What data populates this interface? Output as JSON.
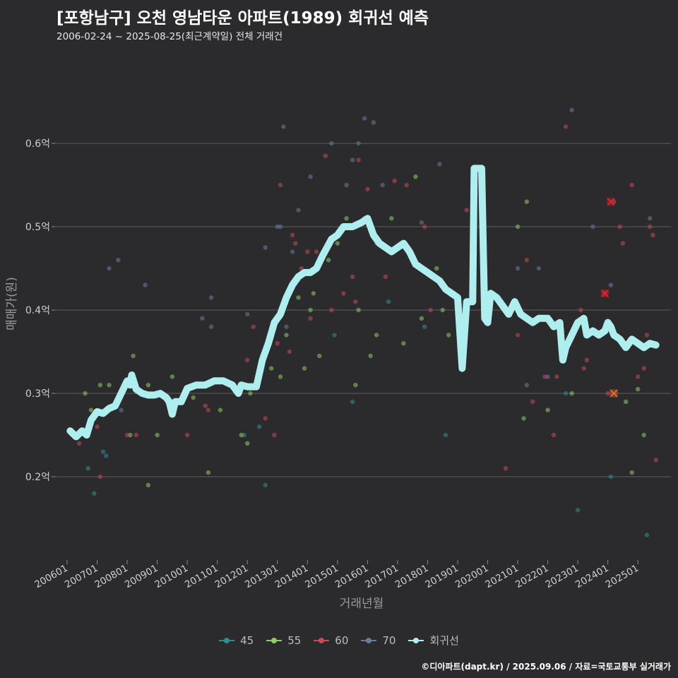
{
  "title": "[포항남구] 오천 영남타운 아파트(1989) 회귀선 예측",
  "subtitle": "2006-02-24 ~ 2025-08-25(최근계약일) 전체 거래건",
  "footer": "©디아파트(dapt.kr) / 2025.09.06 / 자료=국토교통부 실거래가",
  "chart_data": {
    "type": "scatter",
    "xlabel": "거래년월",
    "ylabel": "매매가(원)",
    "xlim": [
      2005.6,
      2026.1
    ],
    "ylim": [
      0.1,
      0.7
    ],
    "x_ticks": [
      {
        "value": 2006,
        "label": "200601"
      },
      {
        "value": 2007,
        "label": "200701"
      },
      {
        "value": 2008,
        "label": "200801"
      },
      {
        "value": 2009,
        "label": "200901"
      },
      {
        "value": 2010,
        "label": "201001"
      },
      {
        "value": 2011,
        "label": "201101"
      },
      {
        "value": 2012,
        "label": "201201"
      },
      {
        "value": 2013,
        "label": "201301"
      },
      {
        "value": 2014,
        "label": "201401"
      },
      {
        "value": 2015,
        "label": "201501"
      },
      {
        "value": 2016,
        "label": "201601"
      },
      {
        "value": 2017,
        "label": "201701"
      },
      {
        "value": 2018,
        "label": "201801"
      },
      {
        "value": 2019,
        "label": "201901"
      },
      {
        "value": 2020,
        "label": "202001"
      },
      {
        "value": 2021,
        "label": "202101"
      },
      {
        "value": 2022,
        "label": "202201"
      },
      {
        "value": 2023,
        "label": "202301"
      },
      {
        "value": 2024,
        "label": "202401"
      },
      {
        "value": 2025,
        "label": "202501"
      }
    ],
    "y_ticks": [
      {
        "value": 0.2,
        "label": "0.2억"
      },
      {
        "value": 0.3,
        "label": "0.3억"
      },
      {
        "value": 0.4,
        "label": "0.4억"
      },
      {
        "value": 0.5,
        "label": "0.5억"
      },
      {
        "value": 0.6,
        "label": "0.6억"
      }
    ],
    "series": [
      {
        "name": "45",
        "color": "#2a8f93",
        "points": [
          [
            2006.7,
            0.21
          ],
          [
            2006.9,
            0.18
          ],
          [
            2007.2,
            0.23
          ],
          [
            2007.3,
            0.225
          ],
          [
            2011.4,
            0.31
          ],
          [
            2011.9,
            0.25
          ],
          [
            2012.0,
            0.31
          ],
          [
            2012.4,
            0.26
          ],
          [
            2012.6,
            0.19
          ],
          [
            2014.9,
            0.37
          ],
          [
            2015.5,
            0.29
          ],
          [
            2016.7,
            0.41
          ],
          [
            2017.9,
            0.38
          ],
          [
            2018.6,
            0.25
          ],
          [
            2022.6,
            0.3
          ],
          [
            2023.0,
            0.16
          ],
          [
            2024.1,
            0.2
          ],
          [
            2025.3,
            0.13
          ]
        ]
      },
      {
        "name": "55",
        "color": "#8ccf62",
        "points": [
          [
            2006.6,
            0.3
          ],
          [
            2006.8,
            0.28
          ],
          [
            2007.1,
            0.31
          ],
          [
            2007.2,
            0.275
          ],
          [
            2007.4,
            0.31
          ],
          [
            2008.1,
            0.25
          ],
          [
            2008.2,
            0.345
          ],
          [
            2008.7,
            0.31
          ],
          [
            2008.7,
            0.19
          ],
          [
            2009.0,
            0.25
          ],
          [
            2009.5,
            0.32
          ],
          [
            2010.2,
            0.295
          ],
          [
            2010.7,
            0.205
          ],
          [
            2011.1,
            0.28
          ],
          [
            2011.8,
            0.25
          ],
          [
            2012.0,
            0.24
          ],
          [
            2012.1,
            0.3
          ],
          [
            2012.4,
            0.32
          ],
          [
            2012.8,
            0.33
          ],
          [
            2013.1,
            0.32
          ],
          [
            2013.3,
            0.37
          ],
          [
            2013.7,
            0.415
          ],
          [
            2013.9,
            0.33
          ],
          [
            2014.1,
            0.4
          ],
          [
            2014.2,
            0.42
          ],
          [
            2014.4,
            0.345
          ],
          [
            2014.7,
            0.46
          ],
          [
            2015.0,
            0.48
          ],
          [
            2015.3,
            0.51
          ],
          [
            2015.6,
            0.31
          ],
          [
            2015.7,
            0.4
          ],
          [
            2016.1,
            0.345
          ],
          [
            2016.3,
            0.37
          ],
          [
            2016.8,
            0.51
          ],
          [
            2017.2,
            0.36
          ],
          [
            2017.6,
            0.56
          ],
          [
            2017.8,
            0.39
          ],
          [
            2018.3,
            0.45
          ],
          [
            2018.5,
            0.4
          ],
          [
            2018.7,
            0.37
          ],
          [
            2021.0,
            0.5
          ],
          [
            2021.2,
            0.27
          ],
          [
            2021.3,
            0.53
          ],
          [
            2022.0,
            0.28
          ],
          [
            2022.8,
            0.3
          ],
          [
            2024.6,
            0.29
          ],
          [
            2024.8,
            0.205
          ],
          [
            2025.0,
            0.305
          ],
          [
            2025.2,
            0.25
          ]
        ]
      },
      {
        "name": "60",
        "color": "#c94b55",
        "points": [
          [
            2006.4,
            0.24
          ],
          [
            2007.0,
            0.26
          ],
          [
            2007.1,
            0.2
          ],
          [
            2008.0,
            0.25
          ],
          [
            2008.3,
            0.25
          ],
          [
            2010.0,
            0.25
          ],
          [
            2010.6,
            0.285
          ],
          [
            2010.7,
            0.28
          ],
          [
            2012.0,
            0.34
          ],
          [
            2012.2,
            0.38
          ],
          [
            2012.6,
            0.27
          ],
          [
            2012.9,
            0.25
          ],
          [
            2013.0,
            0.36
          ],
          [
            2013.1,
            0.55
          ],
          [
            2013.4,
            0.35
          ],
          [
            2013.5,
            0.49
          ],
          [
            2013.6,
            0.48
          ],
          [
            2013.8,
            0.45
          ],
          [
            2014.0,
            0.47
          ],
          [
            2014.1,
            0.39
          ],
          [
            2014.3,
            0.47
          ],
          [
            2014.6,
            0.585
          ],
          [
            2014.8,
            0.4
          ],
          [
            2015.2,
            0.42
          ],
          [
            2015.5,
            0.44
          ],
          [
            2015.6,
            0.41
          ],
          [
            2015.7,
            0.58
          ],
          [
            2015.9,
            0.51
          ],
          [
            2016.0,
            0.545
          ],
          [
            2016.3,
            0.48
          ],
          [
            2016.6,
            0.44
          ],
          [
            2016.9,
            0.555
          ],
          [
            2017.3,
            0.55
          ],
          [
            2017.9,
            0.5
          ],
          [
            2018.1,
            0.4
          ],
          [
            2019.3,
            0.52
          ],
          [
            2020.6,
            0.21
          ],
          [
            2021.0,
            0.37
          ],
          [
            2021.3,
            0.46
          ],
          [
            2021.5,
            0.29
          ],
          [
            2021.9,
            0.32
          ],
          [
            2022.2,
            0.25
          ],
          [
            2022.3,
            0.32
          ],
          [
            2022.6,
            0.62
          ],
          [
            2023.1,
            0.4
          ],
          [
            2023.2,
            0.33
          ],
          [
            2023.3,
            0.34
          ],
          [
            2023.9,
            0.42
          ],
          [
            2024.0,
            0.3
          ],
          [
            2024.2,
            0.53
          ],
          [
            2024.4,
            0.5
          ],
          [
            2024.5,
            0.48
          ],
          [
            2024.8,
            0.55
          ],
          [
            2025.0,
            0.32
          ],
          [
            2025.2,
            0.33
          ],
          [
            2025.3,
            0.37
          ],
          [
            2025.4,
            0.5
          ],
          [
            2025.5,
            0.49
          ],
          [
            2025.6,
            0.22
          ]
        ]
      },
      {
        "name": "70",
        "color": "#6a7a9c",
        "points": [
          [
            2007.4,
            0.45
          ],
          [
            2007.7,
            0.46
          ],
          [
            2007.8,
            0.28
          ],
          [
            2008.6,
            0.43
          ],
          [
            2010.5,
            0.39
          ],
          [
            2010.8,
            0.415
          ],
          [
            2010.8,
            0.38
          ],
          [
            2012.0,
            0.395
          ],
          [
            2012.6,
            0.475
          ],
          [
            2013.0,
            0.5
          ],
          [
            2013.1,
            0.5
          ],
          [
            2013.2,
            0.62
          ],
          [
            2013.3,
            0.38
          ],
          [
            2013.5,
            0.47
          ],
          [
            2013.7,
            0.52
          ],
          [
            2014.1,
            0.56
          ],
          [
            2014.8,
            0.6
          ],
          [
            2015.3,
            0.55
          ],
          [
            2015.5,
            0.58
          ],
          [
            2015.7,
            0.6
          ],
          [
            2015.9,
            0.63
          ],
          [
            2016.2,
            0.625
          ],
          [
            2016.5,
            0.55
          ],
          [
            2017.8,
            0.505
          ],
          [
            2018.4,
            0.575
          ],
          [
            2021.0,
            0.45
          ],
          [
            2021.3,
            0.31
          ],
          [
            2021.7,
            0.45
          ],
          [
            2022.0,
            0.32
          ],
          [
            2022.8,
            0.64
          ],
          [
            2023.5,
            0.5
          ],
          [
            2024.1,
            0.43
          ],
          [
            2025.4,
            0.51
          ]
        ]
      }
    ],
    "highlighted_points": [
      {
        "x": 2023.9,
        "y": 0.42,
        "color": "#d9232c"
      },
      {
        "x": 2024.1,
        "y": 0.53,
        "color": "#d9232c"
      },
      {
        "x": 2024.2,
        "y": 0.3,
        "color": "#e06a2c"
      }
    ],
    "regression": {
      "name": "회귀선",
      "color": "#aeeeee",
      "points": [
        [
          2006.1,
          0.255
        ],
        [
          2006.3,
          0.248
        ],
        [
          2006.5,
          0.255
        ],
        [
          2006.65,
          0.25
        ],
        [
          2006.8,
          0.268
        ],
        [
          2007.0,
          0.278
        ],
        [
          2007.2,
          0.276
        ],
        [
          2007.4,
          0.282
        ],
        [
          2007.6,
          0.285
        ],
        [
          2007.8,
          0.3
        ],
        [
          2008.0,
          0.315
        ],
        [
          2008.1,
          0.31
        ],
        [
          2008.15,
          0.322
        ],
        [
          2008.3,
          0.305
        ],
        [
          2008.5,
          0.3
        ],
        [
          2008.7,
          0.298
        ],
        [
          2008.9,
          0.298
        ],
        [
          2009.1,
          0.3
        ],
        [
          2009.3,
          0.295
        ],
        [
          2009.4,
          0.29
        ],
        [
          2009.5,
          0.275
        ],
        [
          2009.6,
          0.29
        ],
        [
          2009.8,
          0.29
        ],
        [
          2010.0,
          0.306
        ],
        [
          2010.3,
          0.31
        ],
        [
          2010.6,
          0.31
        ],
        [
          2010.9,
          0.315
        ],
        [
          2011.2,
          0.315
        ],
        [
          2011.5,
          0.31
        ],
        [
          2011.7,
          0.3
        ],
        [
          2011.8,
          0.31
        ],
        [
          2012.0,
          0.308
        ],
        [
          2012.3,
          0.308
        ],
        [
          2012.5,
          0.34
        ],
        [
          2012.7,
          0.36
        ],
        [
          2012.9,
          0.385
        ],
        [
          2013.1,
          0.395
        ],
        [
          2013.3,
          0.415
        ],
        [
          2013.5,
          0.43
        ],
        [
          2013.7,
          0.44
        ],
        [
          2013.9,
          0.445
        ],
        [
          2014.1,
          0.445
        ],
        [
          2014.3,
          0.45
        ],
        [
          2014.5,
          0.465
        ],
        [
          2014.8,
          0.485
        ],
        [
          2015.0,
          0.49
        ],
        [
          2015.2,
          0.5
        ],
        [
          2015.5,
          0.5
        ],
        [
          2015.8,
          0.505
        ],
        [
          2016.0,
          0.51
        ],
        [
          2016.2,
          0.49
        ],
        [
          2016.4,
          0.48
        ],
        [
          2016.6,
          0.475
        ],
        [
          2016.8,
          0.47
        ],
        [
          2017.0,
          0.475
        ],
        [
          2017.2,
          0.48
        ],
        [
          2017.4,
          0.47
        ],
        [
          2017.6,
          0.455
        ],
        [
          2017.8,
          0.45
        ],
        [
          2018.0,
          0.445
        ],
        [
          2018.2,
          0.44
        ],
        [
          2018.4,
          0.435
        ],
        [
          2018.6,
          0.425
        ],
        [
          2018.8,
          0.42
        ],
        [
          2019.0,
          0.415
        ],
        [
          2019.15,
          0.33
        ],
        [
          2019.3,
          0.41
        ],
        [
          2019.5,
          0.41
        ],
        [
          2019.55,
          0.57
        ],
        [
          2019.8,
          0.57
        ],
        [
          2019.9,
          0.39
        ],
        [
          2020.0,
          0.385
        ],
        [
          2020.1,
          0.42
        ],
        [
          2020.3,
          0.415
        ],
        [
          2020.5,
          0.405
        ],
        [
          2020.7,
          0.395
        ],
        [
          2020.9,
          0.41
        ],
        [
          2021.1,
          0.395
        ],
        [
          2021.3,
          0.39
        ],
        [
          2021.5,
          0.385
        ],
        [
          2021.7,
          0.39
        ],
        [
          2022.0,
          0.39
        ],
        [
          2022.2,
          0.38
        ],
        [
          2022.4,
          0.385
        ],
        [
          2022.5,
          0.34
        ],
        [
          2022.6,
          0.355
        ],
        [
          2022.8,
          0.37
        ],
        [
          2023.0,
          0.385
        ],
        [
          2023.2,
          0.39
        ],
        [
          2023.3,
          0.37
        ],
        [
          2023.5,
          0.375
        ],
        [
          2023.7,
          0.37
        ],
        [
          2023.9,
          0.375
        ],
        [
          2024.0,
          0.385
        ],
        [
          2024.1,
          0.38
        ],
        [
          2024.2,
          0.37
        ],
        [
          2024.4,
          0.365
        ],
        [
          2024.6,
          0.355
        ],
        [
          2024.8,
          0.365
        ],
        [
          2025.0,
          0.36
        ],
        [
          2025.2,
          0.355
        ],
        [
          2025.4,
          0.36
        ],
        [
          2025.6,
          0.358
        ]
      ]
    }
  },
  "legend": [
    {
      "label": "45",
      "color": "#2a8f93"
    },
    {
      "label": "55",
      "color": "#8ccf62"
    },
    {
      "label": "60",
      "color": "#c94b55"
    },
    {
      "label": "70",
      "color": "#6a7a9c"
    },
    {
      "label": "회귀선",
      "color": "#aeeeee"
    }
  ]
}
